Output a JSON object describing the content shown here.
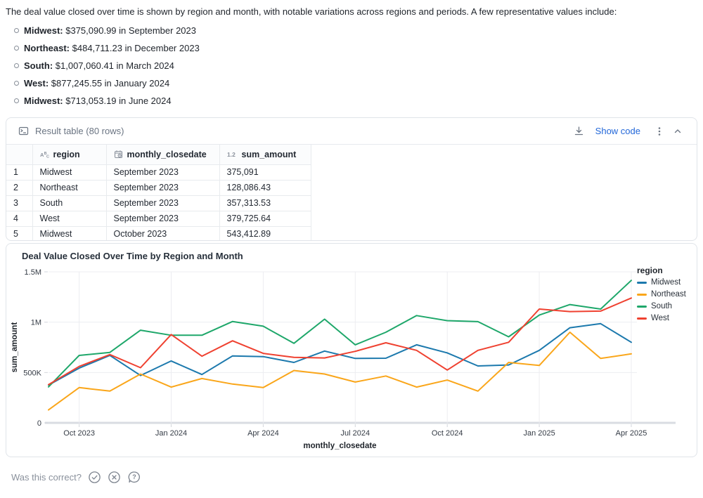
{
  "description": "The deal value closed over time is shown by region and month, with notable variations across regions and periods. A few representative values include:",
  "bullets": [
    {
      "label": "Midwest",
      "text": "$375,090.99 in September 2023"
    },
    {
      "label": "Northeast",
      "text": "$484,711.23 in December 2023"
    },
    {
      "label": "South",
      "text": "$1,007,060.41 in March 2024"
    },
    {
      "label": "West",
      "text": "$877,245.55 in January 2024"
    },
    {
      "label": "Midwest",
      "text": "$713,053.19 in June 2024"
    }
  ],
  "result_panel": {
    "title": "Result table (80 rows)",
    "show_code_label": "Show code",
    "table": {
      "columns": [
        {
          "name": "region",
          "type": "string"
        },
        {
          "name": "monthly_closedate",
          "type": "date"
        },
        {
          "name": "sum_amount",
          "type": "number"
        }
      ],
      "rows": [
        {
          "num": "1",
          "region": "Midwest",
          "monthly_closedate": "September 2023",
          "sum_amount": "375,091"
        },
        {
          "num": "2",
          "region": "Northeast",
          "monthly_closedate": "September 2023",
          "sum_amount": "128,086.43"
        },
        {
          "num": "3",
          "region": "South",
          "monthly_closedate": "September 2023",
          "sum_amount": "357,313.53"
        },
        {
          "num": "4",
          "region": "West",
          "monthly_closedate": "September 2023",
          "sum_amount": "379,725.64"
        },
        {
          "num": "5",
          "region": "Midwest",
          "monthly_closedate": "October 2023",
          "sum_amount": "543,412.89"
        }
      ]
    }
  },
  "chart_data": {
    "type": "line",
    "title": "Deal Value Closed Over Time by Region and Month",
    "xlabel": "monthly_closedate",
    "ylabel": "sum_amount",
    "legend_title": "region",
    "legend_position": "right",
    "grid": true,
    "ylim": [
      0,
      1500000
    ],
    "x": [
      "Sep 2023",
      "Oct 2023",
      "Nov 2023",
      "Dec 2023",
      "Jan 2024",
      "Feb 2024",
      "Mar 2024",
      "Apr 2024",
      "May 2024",
      "Jun 2024",
      "Jul 2024",
      "Aug 2024",
      "Sep 2024",
      "Oct 2024",
      "Nov 2024",
      "Dec 2024",
      "Jan 2025",
      "Feb 2025",
      "Mar 2025",
      "Apr 2025"
    ],
    "x_ticks": [
      {
        "index": 1,
        "label": "Oct 2023"
      },
      {
        "index": 4,
        "label": "Jan 2024"
      },
      {
        "index": 7,
        "label": "Apr 2024"
      },
      {
        "index": 10,
        "label": "Jul 2024"
      },
      {
        "index": 13,
        "label": "Oct 2024"
      },
      {
        "index": 16,
        "label": "Jan 2025"
      },
      {
        "index": 19,
        "label": "Apr 2025"
      }
    ],
    "y_ticks": [
      {
        "value": 0,
        "label": "0"
      },
      {
        "value": 500000,
        "label": "500K"
      },
      {
        "value": 1000000,
        "label": "1M"
      },
      {
        "value": 1500000,
        "label": "1.5M"
      }
    ],
    "series": [
      {
        "name": "Midwest",
        "color": "#1c79ad",
        "values": [
          375091,
          543413,
          670000,
          470000,
          615000,
          480000,
          665000,
          658000,
          600000,
          713053,
          640000,
          642000,
          775000,
          695000,
          565000,
          575000,
          720000,
          945000,
          985000,
          800000
        ]
      },
      {
        "name": "Northeast",
        "color": "#faa61a",
        "values": [
          128086,
          350000,
          315000,
          484711,
          355000,
          440000,
          385000,
          350000,
          520000,
          485000,
          405000,
          465000,
          355000,
          425000,
          315000,
          600000,
          570000,
          900000,
          640000,
          685000
        ]
      },
      {
        "name": "South",
        "color": "#1ea76a",
        "values": [
          357314,
          670000,
          700000,
          920000,
          870000,
          870000,
          1007060,
          960000,
          790000,
          1030000,
          775000,
          900000,
          1065000,
          1015000,
          1005000,
          855000,
          1070000,
          1175000,
          1130000,
          1415000
        ]
      },
      {
        "name": "West",
        "color": "#ef4130",
        "values": [
          379726,
          560000,
          678000,
          548000,
          877246,
          662000,
          815000,
          690000,
          650000,
          645000,
          710000,
          795000,
          720000,
          525000,
          720000,
          800000,
          1130000,
          1105000,
          1110000,
          1240000
        ]
      }
    ]
  },
  "footer": {
    "question": "Was this correct?"
  }
}
